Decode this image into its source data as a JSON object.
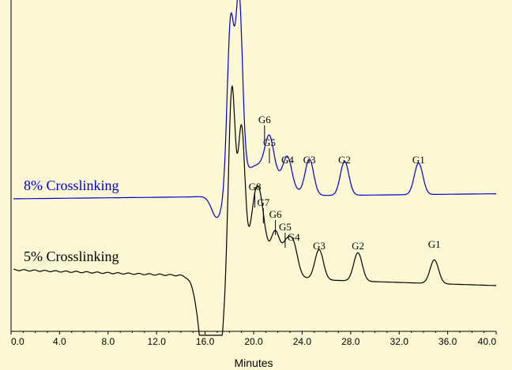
{
  "chart_data": {
    "type": "line",
    "title": "",
    "xlabel": "Minutes",
    "ylabel": "",
    "xlim": [
      0,
      40
    ],
    "x_ticks": [
      "0.0",
      "4.0",
      "8.0",
      "12.0",
      "16.0",
      "20.0",
      "24.0",
      "28.0",
      "32.0",
      "36.0",
      "40.0"
    ],
    "grid": false,
    "legend": "none",
    "colors": {
      "background": "#fcf8d4",
      "axis": "#000000",
      "series_8pct": "#0000cc",
      "series_5pct": "#000000"
    },
    "series": [
      {
        "name": "8% Crosslinking",
        "color": "#0000cc",
        "baseline": 0,
        "peaks": [
          {
            "x": 18.1,
            "y": 208
          },
          {
            "x": 18.8,
            "y": 228
          },
          {
            "x": 21.3,
            "y": 42
          },
          {
            "x": 22.8,
            "y": 36
          },
          {
            "x": 24.6,
            "y": 45
          },
          {
            "x": 27.5,
            "y": 43
          },
          {
            "x": 33.6,
            "y": 40
          }
        ],
        "dip": {
          "x": 17.0,
          "y": -30
        },
        "peak_labels": [
          {
            "label": "G6",
            "x": 20.9
          },
          {
            "label": "G5",
            "x": 21.3
          },
          {
            "label": "G4",
            "x": 22.8
          },
          {
            "label": "G3",
            "x": 24.6
          },
          {
            "label": "G2",
            "x": 27.5
          },
          {
            "label": "G1",
            "x": 33.6
          }
        ]
      },
      {
        "name": "5% Crosslinking",
        "color": "#000000",
        "baseline": 0,
        "peaks": [
          {
            "x": 18.2,
            "y": 238
          },
          {
            "x": 19.0,
            "y": 170
          },
          {
            "x": 20.1,
            "y": 60
          },
          {
            "x": 20.6,
            "y": 52
          },
          {
            "x": 21.8,
            "y": 38
          },
          {
            "x": 22.7,
            "y": 30
          },
          {
            "x": 23.3,
            "y": 35
          },
          {
            "x": 25.4,
            "y": 38
          },
          {
            "x": 28.6,
            "y": 36
          },
          {
            "x": 34.9,
            "y": 30
          }
        ],
        "dip": {
          "x": 16.5,
          "y": -200
        },
        "peak_labels": [
          {
            "label": "G8",
            "x": 20.1
          },
          {
            "label": "G7",
            "x": 20.8
          },
          {
            "label": "G6",
            "x": 21.8
          },
          {
            "label": "G5",
            "x": 22.6
          },
          {
            "label": "G4",
            "x": 23.3
          },
          {
            "label": "G3",
            "x": 25.4
          },
          {
            "label": "G2",
            "x": 28.6
          },
          {
            "label": "G1",
            "x": 34.9
          }
        ]
      }
    ]
  }
}
